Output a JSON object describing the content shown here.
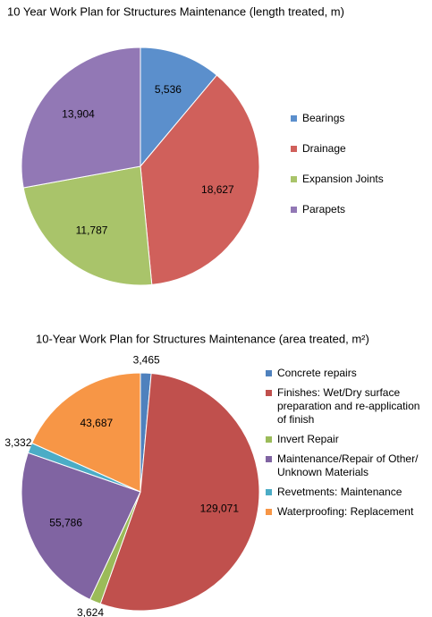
{
  "chart_data": [
    {
      "type": "pie",
      "title": "10 Year Work Plan for Structures Maintenance (length treated, m)",
      "categories": [
        "Bearings",
        "Drainage",
        "Expansion Joints",
        "Parapets"
      ],
      "values": [
        5536,
        18627,
        11787,
        13904
      ],
      "value_labels": [
        "5,536",
        "18,627",
        "11,787",
        "13,904"
      ],
      "colors": [
        "#5b8fcc",
        "#d0605b",
        "#a9c46a",
        "#9278b5"
      ],
      "legend": "right"
    },
    {
      "type": "pie",
      "title": "10-Year Work Plan for Structures Maintenance (area treated, m²)",
      "categories": [
        "Concrete repairs",
        "Finishes: Wet/Dry surface preparation and re-application of finish",
        "Invert Repair",
        "Maintenance/Repair of Other/ Unknown Materials",
        "Revetments: Maintenance",
        "Waterproofing: Replacement"
      ],
      "values": [
        3465,
        129071,
        3624,
        55786,
        3332,
        43687
      ],
      "value_labels": [
        "3,465",
        "129,071",
        "3,624",
        "55,786",
        "3,332",
        "43,687"
      ],
      "colors": [
        "#4f81bd",
        "#c0504d",
        "#9bbb59",
        "#8064a2",
        "#4bacc6",
        "#f79646"
      ],
      "legend": "right"
    }
  ]
}
